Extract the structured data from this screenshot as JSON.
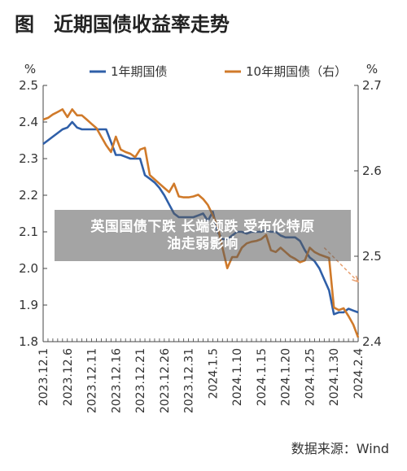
{
  "title": "图　近期国债收益率走势",
  "source": "数据来源：Wind",
  "overlay": {
    "line1": "英国国债下跌 长端领跌 受布伦特原",
    "line2": "油走弱影响"
  },
  "colors": {
    "series_1y": "#2f5fa8",
    "series_10y": "#d07a2a",
    "trend_arrow": "#e8a070",
    "axis": "#444444"
  },
  "chart_data": {
    "type": "line",
    "x": [
      "2023.12.1",
      "2023.12.6",
      "2023.12.11",
      "2023.12.16",
      "2023.12.21",
      "2023.12.26",
      "2023.12.31",
      "2024.1.5",
      "2024.1.10",
      "2024.1.15",
      "2024.1.20",
      "2024.1.25",
      "2024.1.30",
      "2024.2.4"
    ],
    "left_unit": "%",
    "right_unit": "%",
    "left_ticks": [
      "2.5",
      "2.4",
      "2.3",
      "2.2",
      "2.1",
      "2.0",
      "1.9",
      "1.8"
    ],
    "right_ticks": [
      "2.7",
      "2.6",
      "2.5",
      "2.4"
    ],
    "ylim_left": [
      1.8,
      2.5
    ],
    "ylim_right": [
      2.4,
      2.7
    ],
    "grid": false,
    "legend_position": "top",
    "series": [
      {
        "name": "1年期国债",
        "axis": "left",
        "points": [
          [
            "2023-12-01",
            2.34
          ],
          [
            "2023-12-02",
            2.35
          ],
          [
            "2023-12-03",
            2.36
          ],
          [
            "2023-12-04",
            2.37
          ],
          [
            "2023-12-05",
            2.38
          ],
          [
            "2023-12-06",
            2.385
          ],
          [
            "2023-12-07",
            2.4
          ],
          [
            "2023-12-08",
            2.385
          ],
          [
            "2023-12-09",
            2.38
          ],
          [
            "2023-12-10",
            2.38
          ],
          [
            "2023-12-11",
            2.38
          ],
          [
            "2023-12-12",
            2.38
          ],
          [
            "2023-12-13",
            2.38
          ],
          [
            "2023-12-14",
            2.38
          ],
          [
            "2023-12-15",
            2.345
          ],
          [
            "2023-12-16",
            2.31
          ],
          [
            "2023-12-17",
            2.31
          ],
          [
            "2023-12-18",
            2.305
          ],
          [
            "2023-12-19",
            2.3
          ],
          [
            "2023-12-20",
            2.3
          ],
          [
            "2023-12-21",
            2.3
          ],
          [
            "2023-12-22",
            2.255
          ],
          [
            "2023-12-23",
            2.245
          ],
          [
            "2023-12-24",
            2.235
          ],
          [
            "2023-12-25",
            2.22
          ],
          [
            "2023-12-26",
            2.2
          ],
          [
            "2023-12-27",
            2.175
          ],
          [
            "2023-12-28",
            2.15
          ],
          [
            "2023-12-29",
            2.14
          ],
          [
            "2023-12-30",
            2.14
          ],
          [
            "2023-12-31",
            2.14
          ],
          [
            "2024-01-01",
            2.14
          ],
          [
            "2024-01-02",
            2.145
          ],
          [
            "2024-01-03",
            2.15
          ],
          [
            "2024-01-04",
            2.13
          ],
          [
            "2024-01-05",
            2.155
          ],
          [
            "2024-01-06",
            2.1
          ],
          [
            "2024-01-07",
            2.08
          ],
          [
            "2024-01-08",
            2.08
          ],
          [
            "2024-01-09",
            2.09
          ],
          [
            "2024-01-10",
            2.1
          ],
          [
            "2024-01-11",
            2.1
          ],
          [
            "2024-01-12",
            2.095
          ],
          [
            "2024-01-13",
            2.1
          ],
          [
            "2024-01-14",
            2.1
          ],
          [
            "2024-01-15",
            2.1
          ],
          [
            "2024-01-16",
            2.105
          ],
          [
            "2024-01-17",
            2.1
          ],
          [
            "2024-01-18",
            2.1
          ],
          [
            "2024-01-19",
            2.09
          ],
          [
            "2024-01-20",
            2.085
          ],
          [
            "2024-01-21",
            2.085
          ],
          [
            "2024-01-22",
            2.085
          ],
          [
            "2024-01-23",
            2.075
          ],
          [
            "2024-01-24",
            2.05
          ],
          [
            "2024-01-25",
            2.03
          ],
          [
            "2024-01-26",
            2.02
          ],
          [
            "2024-01-27",
            2.0
          ],
          [
            "2024-01-28",
            1.97
          ],
          [
            "2024-01-29",
            1.94
          ],
          [
            "2024-01-30",
            1.875
          ],
          [
            "2024-01-31",
            1.88
          ],
          [
            "2024-02-01",
            1.88
          ],
          [
            "2024-02-02",
            1.89
          ],
          [
            "2024-02-03",
            1.885
          ],
          [
            "2024-02-04",
            1.88
          ]
        ]
      },
      {
        "name": "10年期国债（右）",
        "axis": "right",
        "points": [
          [
            "2023-12-01",
            2.66
          ],
          [
            "2023-12-02",
            2.662
          ],
          [
            "2023-12-03",
            2.666
          ],
          [
            "2023-12-04",
            2.669
          ],
          [
            "2023-12-05",
            2.672
          ],
          [
            "2023-12-06",
            2.663
          ],
          [
            "2023-12-07",
            2.672
          ],
          [
            "2023-12-08",
            2.665
          ],
          [
            "2023-12-09",
            2.665
          ],
          [
            "2023-12-10",
            2.66
          ],
          [
            "2023-12-11",
            2.655
          ],
          [
            "2023-12-12",
            2.65
          ],
          [
            "2023-12-13",
            2.64
          ],
          [
            "2023-12-14",
            2.63
          ],
          [
            "2023-12-15",
            2.622
          ],
          [
            "2023-12-16",
            2.64
          ],
          [
            "2023-12-17",
            2.625
          ],
          [
            "2023-12-18",
            2.622
          ],
          [
            "2023-12-19",
            2.62
          ],
          [
            "2023-12-20",
            2.616
          ],
          [
            "2023-12-21",
            2.625
          ],
          [
            "2023-12-22",
            2.627
          ],
          [
            "2023-12-23",
            2.595
          ],
          [
            "2023-12-24",
            2.59
          ],
          [
            "2023-12-25",
            2.585
          ],
          [
            "2023-12-26",
            2.58
          ],
          [
            "2023-12-27",
            2.575
          ],
          [
            "2023-12-28",
            2.585
          ],
          [
            "2023-12-29",
            2.57
          ],
          [
            "2023-12-30",
            2.569
          ],
          [
            "2023-12-31",
            2.569
          ],
          [
            "2024-01-01",
            2.57
          ],
          [
            "2024-01-02",
            2.572
          ],
          [
            "2024-01-03",
            2.567
          ],
          [
            "2024-01-04",
            2.56
          ],
          [
            "2024-01-05",
            2.548
          ],
          [
            "2024-01-06",
            2.535
          ],
          [
            "2024-01-07",
            2.51
          ],
          [
            "2024-01-08",
            2.486
          ],
          [
            "2024-01-09",
            2.499
          ],
          [
            "2024-01-10",
            2.499
          ],
          [
            "2024-01-11",
            2.51
          ],
          [
            "2024-01-12",
            2.515
          ],
          [
            "2024-01-13",
            2.517
          ],
          [
            "2024-01-14",
            2.518
          ],
          [
            "2024-01-15",
            2.52
          ],
          [
            "2024-01-16",
            2.525
          ],
          [
            "2024-01-17",
            2.507
          ],
          [
            "2024-01-18",
            2.505
          ],
          [
            "2024-01-19",
            2.51
          ],
          [
            "2024-01-20",
            2.505
          ],
          [
            "2024-01-21",
            2.5
          ],
          [
            "2024-01-22",
            2.497
          ],
          [
            "2024-01-23",
            2.493
          ],
          [
            "2024-01-24",
            2.495
          ],
          [
            "2024-01-25",
            2.51
          ],
          [
            "2024-01-26",
            2.505
          ],
          [
            "2024-01-27",
            2.502
          ],
          [
            "2024-01-28",
            2.5
          ],
          [
            "2024-01-29",
            2.498
          ],
          [
            "2024-01-30",
            2.44
          ],
          [
            "2024-01-31",
            2.437
          ],
          [
            "2024-02-01",
            2.439
          ],
          [
            "2024-02-02",
            2.43
          ],
          [
            "2024-02-03",
            2.42
          ],
          [
            "2024-02-04",
            2.405
          ]
        ]
      }
    ],
    "annotations": [
      {
        "type": "dashed-arrow",
        "from": [
          "2024-01-28",
          2.51
        ],
        "to": [
          "2024-02-04",
          2.47
        ],
        "axis": "right"
      }
    ]
  }
}
